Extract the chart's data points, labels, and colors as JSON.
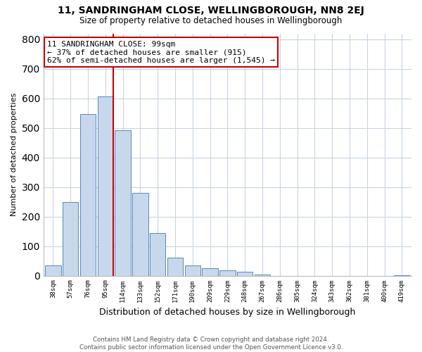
{
  "title1": "11, SANDRINGHAM CLOSE, WELLINGBOROUGH, NN8 2EJ",
  "title2": "Size of property relative to detached houses in Wellingborough",
  "xlabel": "Distribution of detached houses by size in Wellingborough",
  "ylabel": "Number of detached properties",
  "categories": [
    "38sqm",
    "57sqm",
    "76sqm",
    "95sqm",
    "114sqm",
    "133sqm",
    "152sqm",
    "171sqm",
    "190sqm",
    "209sqm",
    "229sqm",
    "248sqm",
    "267sqm",
    "286sqm",
    "305sqm",
    "324sqm",
    "343sqm",
    "362sqm",
    "381sqm",
    "400sqm",
    "419sqm"
  ],
  "values": [
    35,
    250,
    548,
    607,
    493,
    281,
    145,
    60,
    35,
    25,
    18,
    14,
    3,
    0,
    0,
    0,
    0,
    0,
    0,
    0,
    2
  ],
  "bar_color": "#c8d8ec",
  "bar_edge_color": "#5588bb",
  "vline_color": "#cc0000",
  "vline_x_index": 3,
  "annotation_text": "11 SANDRINGHAM CLOSE: 99sqm\n← 37% of detached houses are smaller (915)\n62% of semi-detached houses are larger (1,545) →",
  "annotation_box_color": "#ffffff",
  "annotation_box_edge": "#cc0000",
  "ylim": [
    0,
    820
  ],
  "yticks": [
    0,
    100,
    200,
    300,
    400,
    500,
    600,
    700,
    800
  ],
  "footer": "Contains HM Land Registry data © Crown copyright and database right 2024.\nContains public sector information licensed under the Open Government Licence v3.0.",
  "bg_color": "#ffffff",
  "grid_color": "#c8d4e4"
}
